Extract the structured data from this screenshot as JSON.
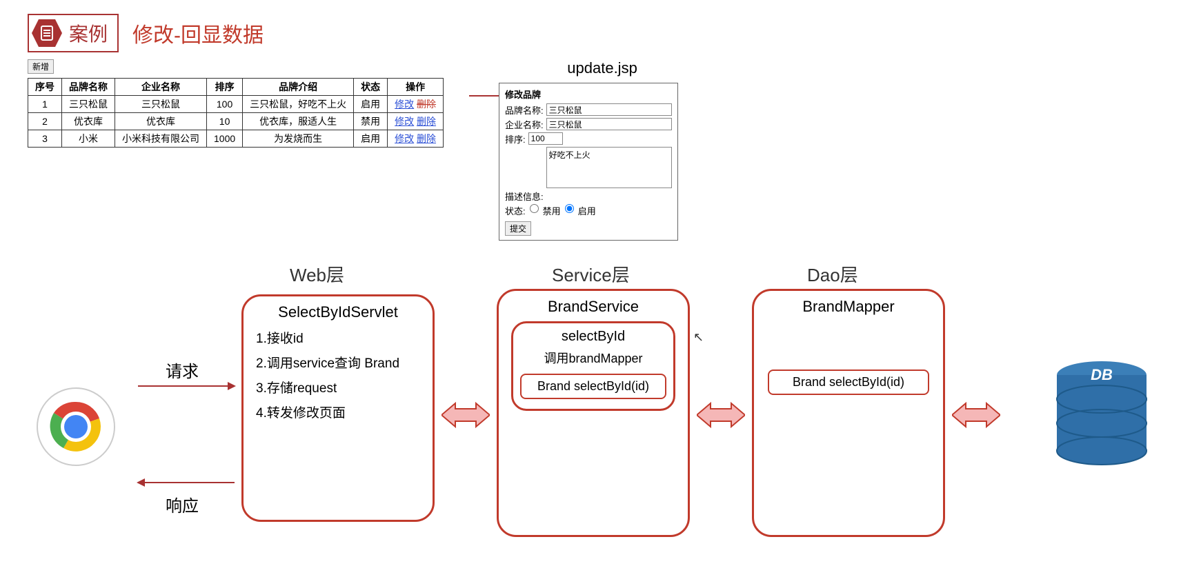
{
  "header": {
    "badge": "案例",
    "title": "修改-回显数据"
  },
  "addButton": "新增",
  "table": {
    "columns": [
      "序号",
      "品牌名称",
      "企业名称",
      "排序",
      "品牌介绍",
      "状态",
      "操作"
    ],
    "rows": [
      {
        "id": "1",
        "brand": "三只松鼠",
        "company": "三只松鼠",
        "order": "100",
        "desc": "三只松鼠，好吃不上火",
        "status": "启用",
        "edit": "修改",
        "del": "删除",
        "delStruck": true
      },
      {
        "id": "2",
        "brand": "优衣库",
        "company": "优衣库",
        "order": "10",
        "desc": "优衣库，服适人生",
        "status": "禁用",
        "edit": "修改",
        "del": "删除",
        "delStruck": false
      },
      {
        "id": "3",
        "brand": "小米",
        "company": "小米科技有限公司",
        "order": "1000",
        "desc": "为发烧而生",
        "status": "启用",
        "edit": "修改",
        "del": "删除",
        "delStruck": false
      }
    ]
  },
  "form": {
    "title": "update.jsp",
    "heading": "修改品牌",
    "labels": {
      "brand": "品牌名称:",
      "company": "企业名称:",
      "order": "排序:",
      "desc": "描述信息:",
      "status": "状态:",
      "disable": "禁用",
      "enable": "启用"
    },
    "values": {
      "brand": "三只松鼠",
      "company": "三只松鼠",
      "order": "100",
      "desc": "好吃不上火"
    },
    "submit": "提交"
  },
  "arch": {
    "layers": {
      "web": "Web层",
      "service": "Service层",
      "dao": "Dao层"
    },
    "web": {
      "title": "SelectByIdServlet",
      "steps": [
        "1.接收id",
        "2.调用service查询 Brand",
        "3.存储request",
        "4.转发修改页面"
      ]
    },
    "service": {
      "title": "BrandService",
      "innerTitle": "selectById",
      "innerSub": "调用brandMapper",
      "pill": "Brand selectById(id)"
    },
    "dao": {
      "title": "BrandMapper",
      "pill": "Brand selectById(id)"
    },
    "reqLabel": "请求",
    "respLabel": "响应",
    "dbLabel": "DB"
  },
  "colors": {
    "accent": "#c13a2b",
    "badgeBorder": "#a83232",
    "link": "#2b4fd6",
    "dbFill": "#2f6fa8",
    "arrowFill": "#f5b7b7",
    "arrowStroke": "#c13a2b"
  }
}
